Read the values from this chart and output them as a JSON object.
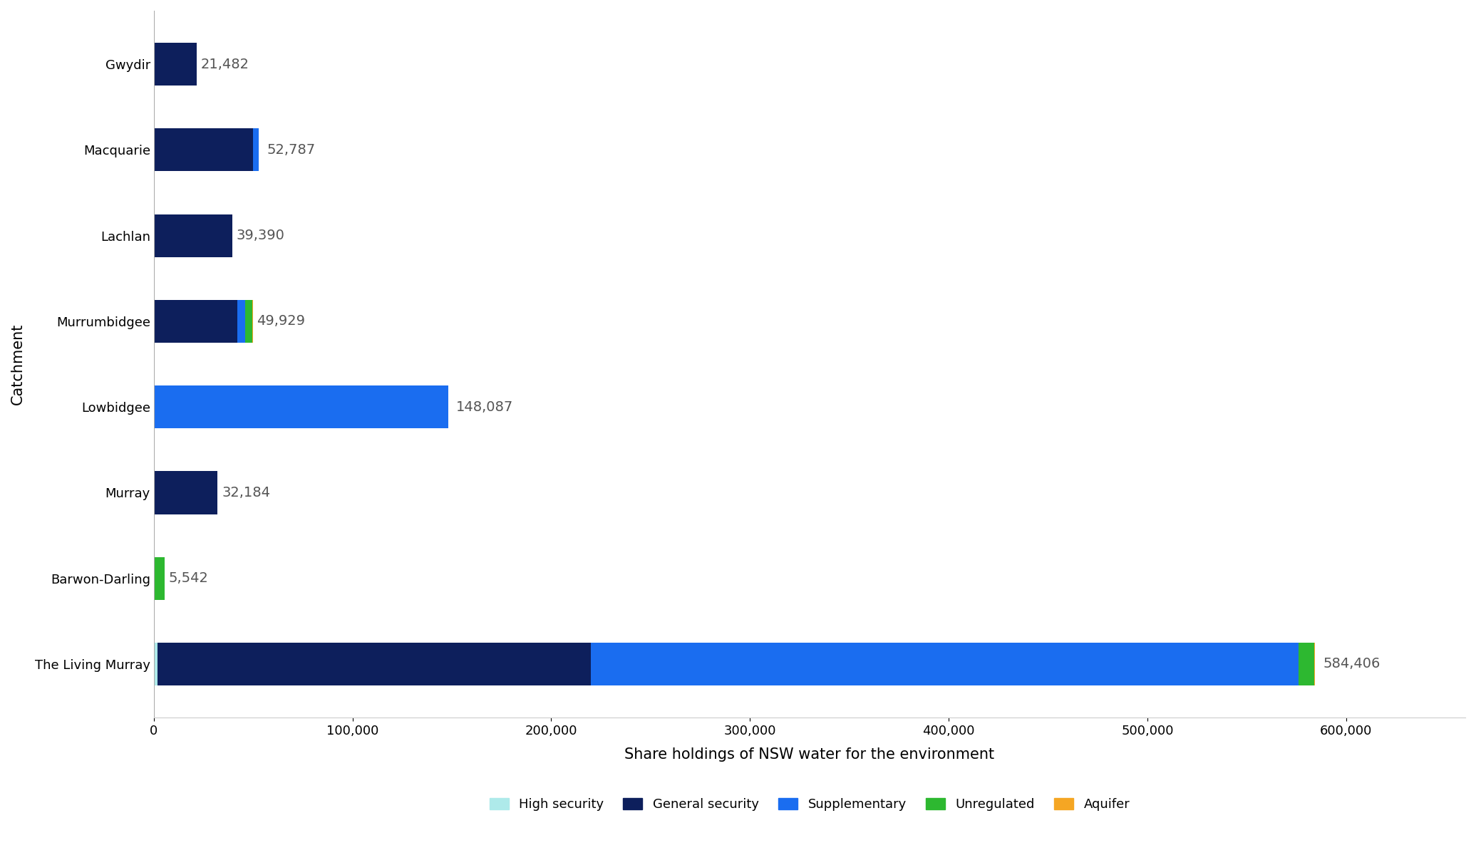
{
  "categories": [
    "Gwydir",
    "Macquarie",
    "Lachlan",
    "Murrumbidgee",
    "Lowbidgee",
    "Murray",
    "Barwon-Darling",
    "The Living Murray"
  ],
  "segments": {
    "High security": [
      0,
      0,
      0,
      0,
      0,
      0,
      0,
      2000
    ],
    "General security": [
      21482,
      50000,
      39390,
      42000,
      0,
      32184,
      0,
      218000
    ],
    "Supplementary": [
      0,
      2787,
      0,
      4000,
      148087,
      0,
      0,
      356000
    ],
    "Unregulated": [
      0,
      0,
      0,
      3500,
      0,
      0,
      5542,
      8000
    ],
    "Aquifer": [
      0,
      0,
      0,
      429,
      0,
      0,
      0,
      406
    ]
  },
  "totals": [
    21482,
    52787,
    39390,
    49929,
    148087,
    32184,
    5542,
    584406
  ],
  "total_labels": [
    "21,482",
    "52,787",
    "39,390",
    "49,929",
    "148,087",
    "32,184",
    "5,542",
    "584,406"
  ],
  "colors": {
    "High security": "#aeeaea",
    "General security": "#0d1f5c",
    "Supplementary": "#1a6df0",
    "Unregulated": "#2db830",
    "Aquifer": "#f5a623"
  },
  "xlabel": "Share holdings of NSW water for the environment",
  "ylabel": "Catchment",
  "xlim": [
    0,
    660000
  ],
  "xticks": [
    0,
    100000,
    200000,
    300000,
    400000,
    500000,
    600000
  ],
  "xtick_labels": [
    "0",
    "100,000",
    "200,000",
    "300,000",
    "400,000",
    "500,000",
    "600,000"
  ],
  "background_color": "#ffffff",
  "label_fontsize": 14,
  "tick_fontsize": 13,
  "legend_fontsize": 13,
  "bar_height": 0.5
}
